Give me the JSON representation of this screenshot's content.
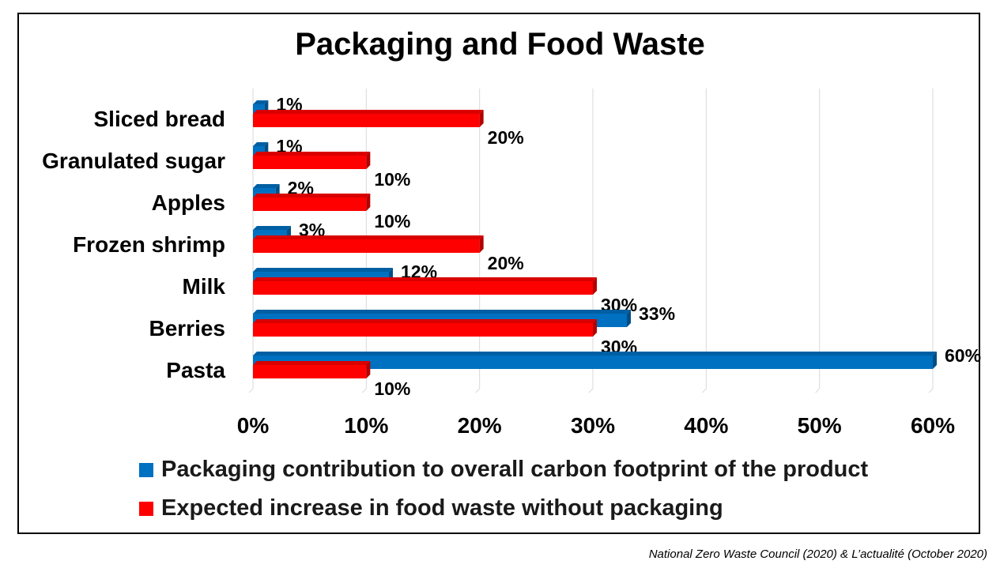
{
  "chart_data": {
    "type": "bar",
    "orientation": "horizontal",
    "title": "Packaging and Food Waste",
    "categories": [
      "Sliced bread",
      "Granulated sugar",
      "Apples",
      "Frozen shrimp",
      "Milk",
      "Berries",
      "Pasta"
    ],
    "series": [
      {
        "name": "Packaging contribution to overall carbon footprint of the product",
        "color": "#0070C0",
        "values": [
          1,
          1,
          2,
          3,
          12,
          33,
          60
        ],
        "labels": [
          "1%",
          "1%",
          "2%",
          "3%",
          "12%",
          "33%",
          "60%"
        ]
      },
      {
        "name": "Expected increase in food waste without packaging",
        "color": "#FF0000",
        "values": [
          20,
          10,
          10,
          20,
          30,
          30,
          10
        ],
        "labels": [
          "20%",
          "10%",
          "10%",
          "20%",
          "30%",
          "30%",
          "10%"
        ]
      }
    ],
    "xlim": [
      0,
      60
    ],
    "x_ticks": [
      "0%",
      "10%",
      "20%",
      "30%",
      "40%",
      "50%",
      "60%"
    ],
    "grid": true,
    "legend_position": "bottom"
  },
  "source": "National Zero Waste Council (2020) & L’actualité (October 2020)"
}
